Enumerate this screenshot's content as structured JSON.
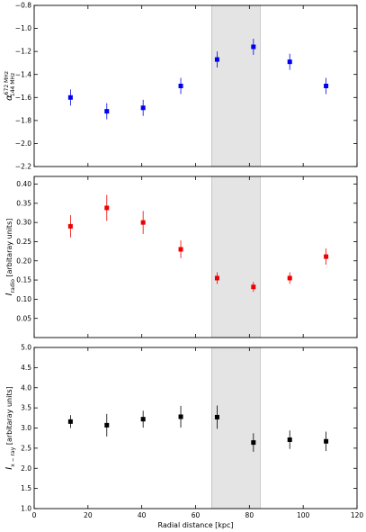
{
  "chart_data": [
    {
      "type": "scatter",
      "title": "",
      "xlabel": "",
      "ylabel": "α 672 MHz / 144 MHz",
      "ylabel_main": "α",
      "ylabel_sup": "672 MHz",
      "ylabel_sub": "144 MHz",
      "xlim": [
        0,
        120
      ],
      "ylim": [
        -2.2,
        -0.8
      ],
      "yticks": [
        -2.2,
        -2.0,
        -1.8,
        -1.6,
        -1.4,
        -1.2,
        -1.0,
        -0.8
      ],
      "ytick_labels": [
        "−2.2",
        "−2.0",
        "−1.8",
        "−1.6",
        "−1.4",
        "−1.2",
        "−1.0",
        "−0.8"
      ],
      "xticks": [
        0,
        20,
        40,
        60,
        80,
        100,
        120
      ],
      "xtick_labels": [],
      "shaded_region": [
        66,
        84
      ],
      "color": "#0000ee",
      "x": [
        13.5,
        27,
        40.5,
        54.5,
        68,
        81.5,
        95,
        108.5
      ],
      "y": [
        -1.6,
        -1.72,
        -1.69,
        -1.5,
        -1.27,
        -1.16,
        -1.29,
        -1.5
      ],
      "yerr": [
        0.07,
        0.07,
        0.07,
        0.07,
        0.07,
        0.07,
        0.07,
        0.07
      ]
    },
    {
      "type": "scatter",
      "title": "",
      "xlabel": "",
      "ylabel": "I radio [arbitaray units]",
      "ylabel_main": "I",
      "ylabel_sub": "radio",
      "ylabel_tail": " [arbitaray units]",
      "xlim": [
        0,
        120
      ],
      "ylim": [
        0.0,
        0.42
      ],
      "yticks": [
        0.05,
        0.1,
        0.15,
        0.2,
        0.25,
        0.3,
        0.35,
        0.4
      ],
      "ytick_labels": [
        "0.05",
        "0.10",
        "0.15",
        "0.20",
        "0.25",
        "0.30",
        "0.35",
        "0.40"
      ],
      "xticks": [
        0,
        20,
        40,
        60,
        80,
        100,
        120
      ],
      "xtick_labels": [],
      "shaded_region": [
        66,
        84
      ],
      "color": "#ee0000",
      "x": [
        13.5,
        27,
        40.5,
        54.5,
        68,
        81.5,
        95,
        108.5
      ],
      "y": [
        0.29,
        0.338,
        0.3,
        0.23,
        0.155,
        0.132,
        0.155,
        0.211
      ],
      "yerr": [
        0.029,
        0.034,
        0.03,
        0.023,
        0.015,
        0.013,
        0.015,
        0.021
      ]
    },
    {
      "type": "scatter",
      "title": "",
      "xlabel": "Radial distance [kpc]",
      "ylabel": "I x−ray [arbitaray units]",
      "ylabel_main": "I",
      "ylabel_sub": "x − ray",
      "ylabel_tail": " [arbitaray units]",
      "xlim": [
        0,
        120
      ],
      "ylim": [
        1.0,
        5.0
      ],
      "yticks": [
        1.0,
        1.5,
        2.0,
        2.5,
        3.0,
        3.5,
        4.0,
        4.5,
        5.0
      ],
      "ytick_labels": [
        "1.0",
        "1.5",
        "2.0",
        "2.5",
        "3.0",
        "3.5",
        "4.0",
        "4.5",
        "5.0"
      ],
      "xticks": [
        0,
        20,
        40,
        60,
        80,
        100,
        120
      ],
      "xtick_labels": [
        "0",
        "20",
        "40",
        "60",
        "80",
        "100",
        "120"
      ],
      "shaded_region": [
        66,
        84
      ],
      "color": "#000000",
      "x": [
        13.5,
        27,
        40.5,
        54.5,
        68,
        81.5,
        95,
        108.5
      ],
      "y": [
        3.16,
        3.07,
        3.22,
        3.28,
        3.27,
        2.64,
        2.71,
        2.67
      ],
      "yerr": [
        0.16,
        0.28,
        0.21,
        0.27,
        0.29,
        0.23,
        0.23,
        0.24
      ]
    }
  ]
}
